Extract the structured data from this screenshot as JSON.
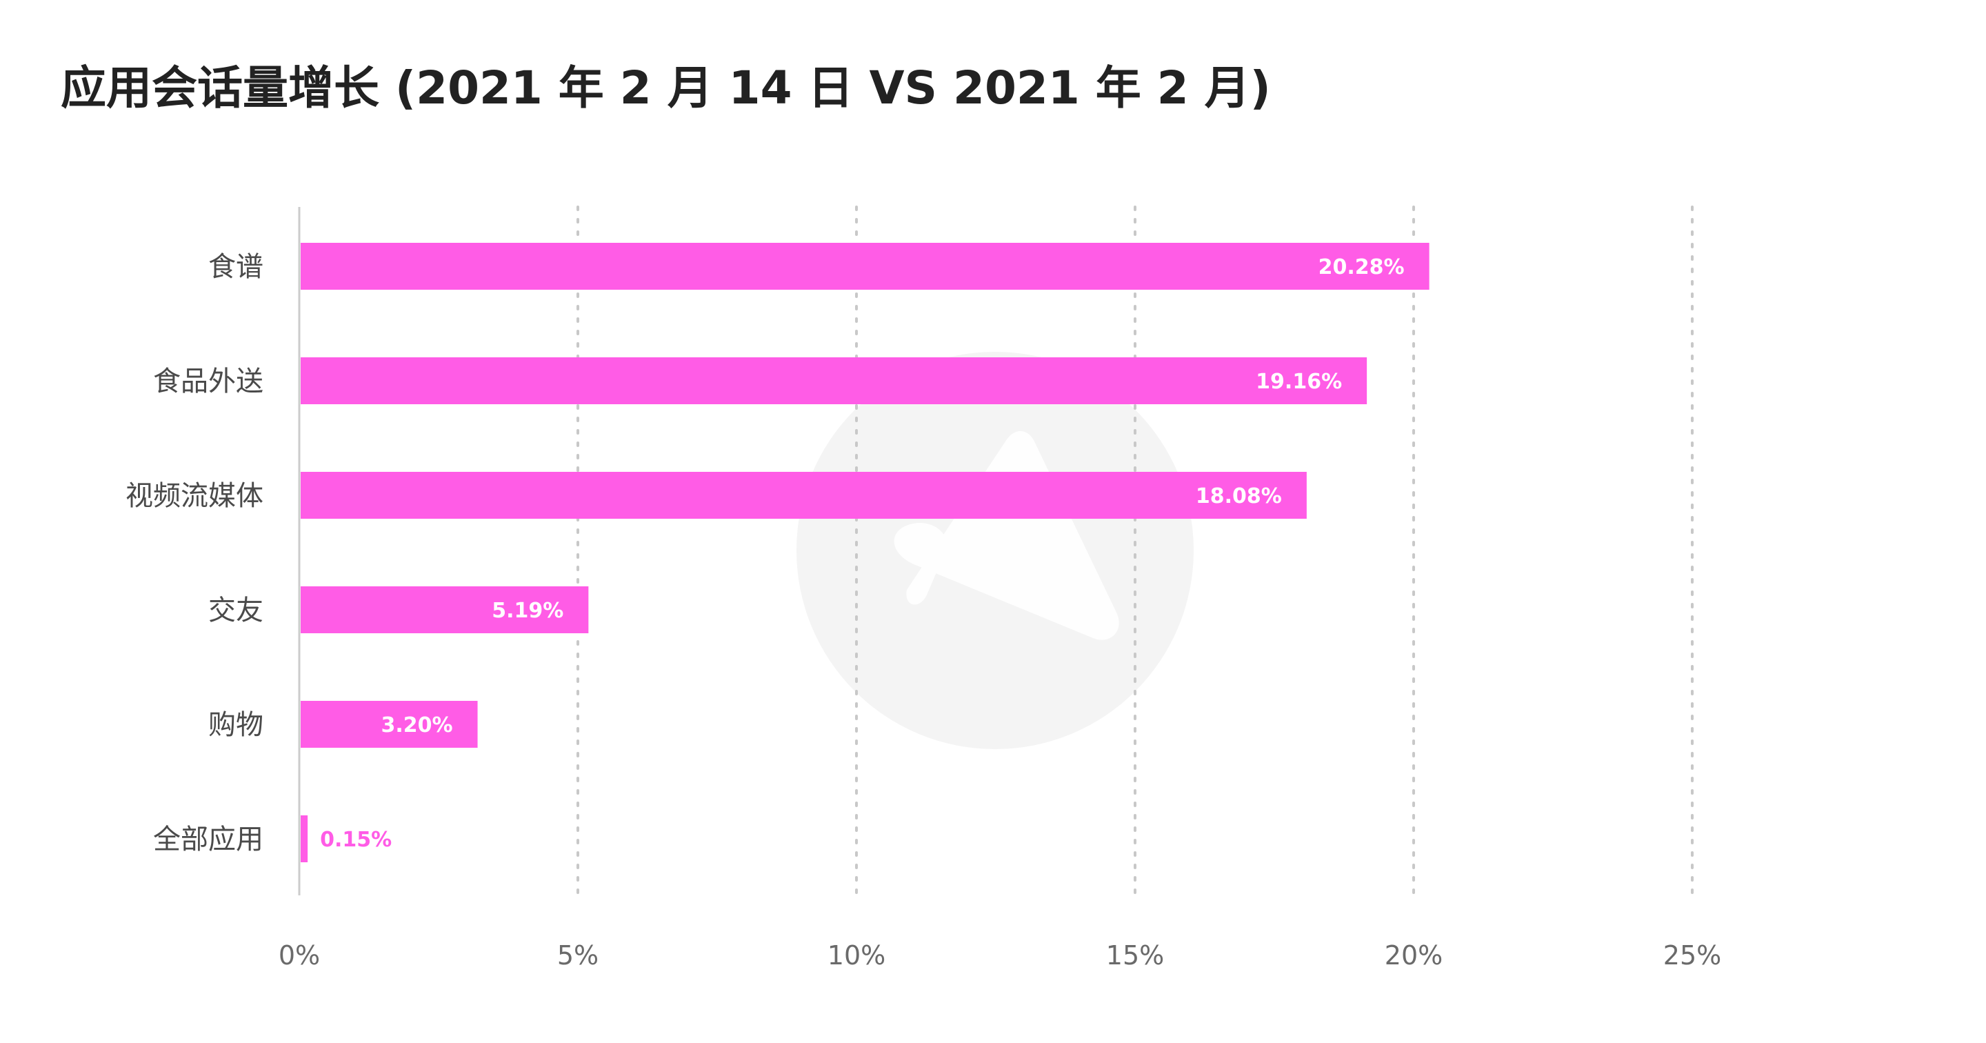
{
  "chart_data": {
    "type": "bar",
    "orientation": "horizontal",
    "title": "应用会话量增长 (2021 年 2 月 14 日 VS 2021 年 2 月)",
    "categories": [
      "食谱",
      "食品外送",
      "视频流媒体",
      "交友",
      "购物",
      "全部应用"
    ],
    "values": [
      20.28,
      19.16,
      18.08,
      5.19,
      3.2,
      0.15
    ],
    "value_labels": [
      "20.28%",
      "19.16%",
      "18.08%",
      "5.19%",
      "3.20%",
      "0.15%"
    ],
    "xlim": [
      0,
      25
    ],
    "xticks": [
      0,
      5,
      10,
      15,
      20,
      25
    ],
    "xtick_labels": [
      "0%",
      "5%",
      "10%",
      "15%",
      "20%",
      "25%"
    ],
    "xlabel": "",
    "ylabel": "",
    "grid": "vertical dotted",
    "legend": "none",
    "colors": {
      "bar": "#ff5ce6",
      "bar_label_inside": "#ffffff",
      "bar_label_outside": "#ff5ce6",
      "grid": "#c8c8c8",
      "axis": "#cccccc",
      "watermark": "#f4f4f4",
      "title": "#222222"
    }
  }
}
